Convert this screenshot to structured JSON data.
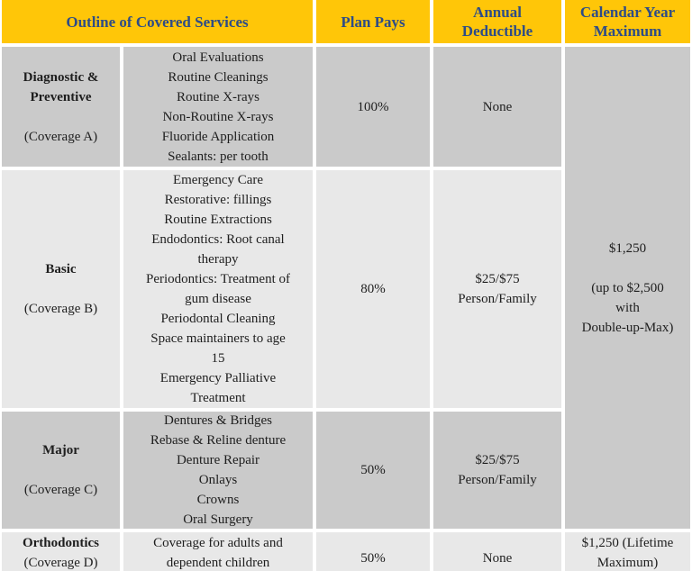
{
  "colors": {
    "header-bg": "#FFC608",
    "header-text": "#2E4C87",
    "row-dark": "#CACACA",
    "row-light": "#E8E8E8",
    "body-text": "#1E1E1E",
    "divider": "#FFFFFF"
  },
  "header": {
    "services": "Outline of Covered Services",
    "plan_pays": "Plan Pays",
    "deductible_lines": [
      "Annual",
      "Deductible"
    ],
    "maximum_lines": [
      "Calendar Year",
      "Maximum"
    ]
  },
  "rows": [
    {
      "category": "Diagnostic & Preventive",
      "coverage": "(Coverage A)",
      "services_lines": [
        "Oral Evaluations",
        "Routine Cleanings",
        "Routine X-rays",
        "Non-Routine X-rays",
        "Fluoride Application",
        "Sealants: per tooth"
      ],
      "plan_pays": "100%",
      "deductible_lines": [
        "None"
      ]
    },
    {
      "category": "Basic",
      "coverage": "(Coverage B)",
      "services_lines": [
        "Emergency Care",
        "Restorative: fillings",
        "Routine Extractions",
        "Endodontics: Root canal",
        "therapy",
        "Periodontics: Treatment of",
        "gum disease",
        "Periodontal Cleaning",
        "Space maintainers to age",
        "15",
        "Emergency Palliative",
        "Treatment"
      ],
      "plan_pays": "80%",
      "deductible_lines": [
        "$25/$75",
        "Person/Family"
      ]
    },
    {
      "category": "Major",
      "coverage": "(Coverage C)",
      "services_lines": [
        "Dentures & Bridges",
        "Rebase & Reline denture",
        "Denture Repair",
        "Onlays",
        "Crowns",
        "Oral Surgery"
      ],
      "plan_pays": "50%",
      "deductible_lines": [
        "$25/$75",
        "Person/Family"
      ]
    },
    {
      "category": "Orthodontics",
      "coverage": "(Coverage D)",
      "services_lines": [
        "Coverage for adults and",
        "dependent children"
      ],
      "plan_pays": "50%",
      "deductible_lines": [
        "None"
      ]
    }
  ],
  "maximum": {
    "merged_lines": [
      "$1,250",
      "",
      "(up to $2,500",
      "with",
      "Double-up-Max)"
    ],
    "ortho_lines": [
      "$1,250 (Lifetime",
      "Maximum)"
    ]
  }
}
